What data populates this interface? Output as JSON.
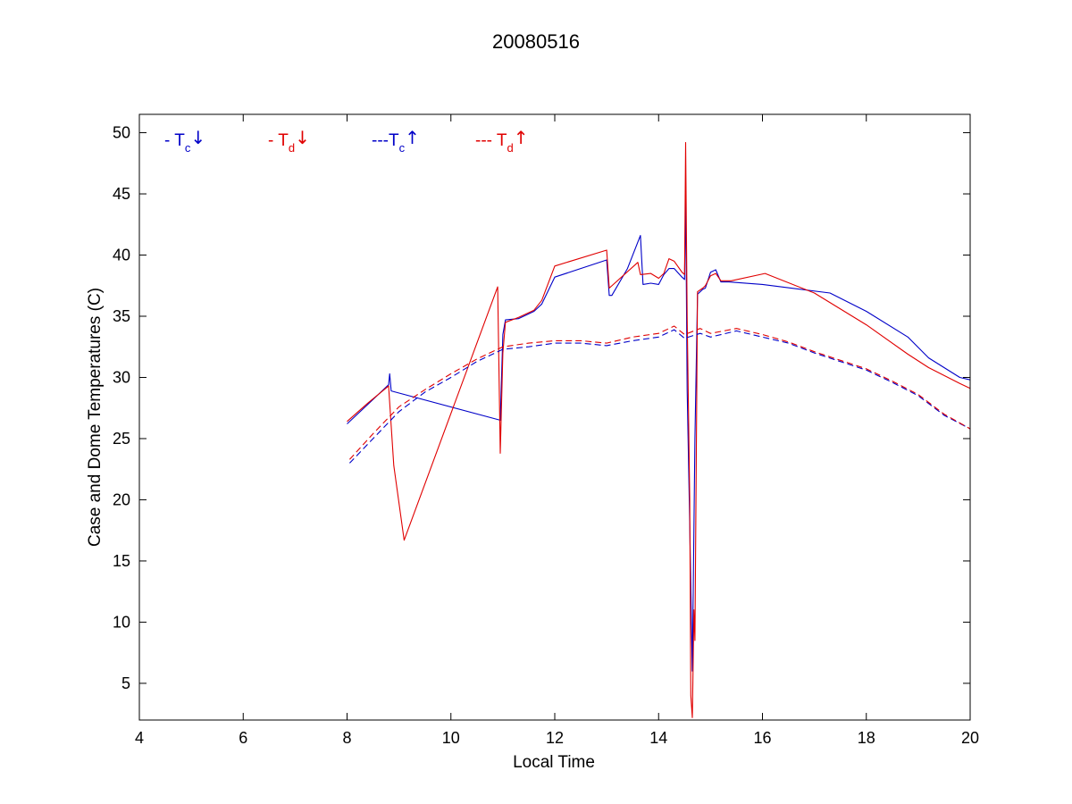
{
  "chart_data": {
    "type": "line",
    "title": "20080516",
    "xlabel": "Local Time",
    "ylabel": "Case and Dome Temperatures (C)",
    "xlim": [
      4,
      20
    ],
    "ylim": [
      2,
      51.5
    ],
    "xticks": [
      4,
      6,
      8,
      10,
      12,
      14,
      16,
      18,
      20
    ],
    "yticks": [
      5,
      10,
      15,
      20,
      25,
      30,
      35,
      40,
      45,
      50
    ],
    "grid": false,
    "legend_position": "top-left",
    "colors": {
      "blue": "#0000c8",
      "red": "#e00000"
    },
    "series": [
      {
        "legend": {
          "dash": "-",
          "main": "T",
          "sub": "c",
          "arrow": "↓"
        },
        "color": "blue",
        "style": "solid",
        "points": [
          [
            8.0,
            26.2
          ],
          [
            8.4,
            27.8
          ],
          [
            8.8,
            29.4
          ],
          [
            8.82,
            30.3
          ],
          [
            8.85,
            28.9
          ],
          [
            10.95,
            26.5
          ],
          [
            11.0,
            33.5
          ],
          [
            11.05,
            34.7
          ],
          [
            11.3,
            34.8
          ],
          [
            11.6,
            35.4
          ],
          [
            11.75,
            36.0
          ],
          [
            12.0,
            38.2
          ],
          [
            13.0,
            39.6
          ],
          [
            13.05,
            36.7
          ],
          [
            13.1,
            36.7
          ],
          [
            13.4,
            38.9
          ],
          [
            13.65,
            41.6
          ],
          [
            13.7,
            37.6
          ],
          [
            13.85,
            37.7
          ],
          [
            14.0,
            37.6
          ],
          [
            14.1,
            38.4
          ],
          [
            14.2,
            38.9
          ],
          [
            14.3,
            38.9
          ],
          [
            14.45,
            38.2
          ],
          [
            14.5,
            38.0
          ],
          [
            14.52,
            45.2
          ],
          [
            14.55,
            29.0
          ],
          [
            14.6,
            18.0
          ],
          [
            14.65,
            6.0
          ],
          [
            14.7,
            25.0
          ],
          [
            14.75,
            36.8
          ],
          [
            14.85,
            37.2
          ],
          [
            14.9,
            37.3
          ],
          [
            15.0,
            38.6
          ],
          [
            15.1,
            38.8
          ],
          [
            15.2,
            37.8
          ],
          [
            15.35,
            37.8
          ],
          [
            16.0,
            37.6
          ],
          [
            17.3,
            36.9
          ],
          [
            18.0,
            35.4
          ],
          [
            18.8,
            33.3
          ],
          [
            19.2,
            31.6
          ],
          [
            19.8,
            30.0
          ],
          [
            20.0,
            29.8
          ]
        ]
      },
      {
        "legend": {
          "dash": "-",
          "main": "T",
          "sub": "d",
          "arrow": "↓"
        },
        "color": "red",
        "style": "solid",
        "points": [
          [
            8.0,
            26.4
          ],
          [
            8.4,
            27.9
          ],
          [
            8.8,
            29.3
          ],
          [
            8.9,
            22.8
          ],
          [
            9.1,
            16.7
          ],
          [
            10.9,
            37.4
          ],
          [
            10.95,
            23.8
          ],
          [
            11.0,
            32.0
          ],
          [
            11.05,
            34.5
          ],
          [
            11.3,
            34.9
          ],
          [
            11.6,
            35.5
          ],
          [
            11.75,
            36.3
          ],
          [
            12.0,
            39.1
          ],
          [
            13.0,
            40.4
          ],
          [
            13.05,
            37.3
          ],
          [
            13.6,
            39.4
          ],
          [
            13.65,
            38.4
          ],
          [
            13.85,
            38.5
          ],
          [
            14.0,
            38.1
          ],
          [
            14.1,
            38.5
          ],
          [
            14.2,
            39.7
          ],
          [
            14.3,
            39.5
          ],
          [
            14.45,
            38.6
          ],
          [
            14.5,
            38.4
          ],
          [
            14.52,
            49.2
          ],
          [
            14.55,
            35.0
          ],
          [
            14.6,
            20.0
          ],
          [
            14.62,
            4.0
          ],
          [
            14.65,
            2.2
          ],
          [
            14.68,
            11.0
          ],
          [
            14.7,
            8.5
          ],
          [
            14.75,
            37.0
          ],
          [
            14.85,
            37.3
          ],
          [
            14.9,
            37.5
          ],
          [
            15.0,
            38.3
          ],
          [
            15.1,
            38.5
          ],
          [
            15.2,
            37.9
          ],
          [
            15.4,
            37.9
          ],
          [
            16.05,
            38.5
          ],
          [
            17.0,
            36.9
          ],
          [
            18.0,
            34.3
          ],
          [
            18.8,
            31.9
          ],
          [
            19.2,
            30.8
          ],
          [
            19.8,
            29.5
          ],
          [
            20.0,
            29.1
          ]
        ]
      },
      {
        "legend": {
          "dash": "---",
          "main": "T",
          "sub": "c",
          "arrow": "↑"
        },
        "color": "blue",
        "style": "dashed",
        "points": [
          [
            8.05,
            23.0
          ],
          [
            8.5,
            25.0
          ],
          [
            9.0,
            27.2
          ],
          [
            9.5,
            28.8
          ],
          [
            10.0,
            30.0
          ],
          [
            10.5,
            31.3
          ],
          [
            11.0,
            32.3
          ],
          [
            11.5,
            32.5
          ],
          [
            12.0,
            32.8
          ],
          [
            12.5,
            32.8
          ],
          [
            13.0,
            32.6
          ],
          [
            13.5,
            33.0
          ],
          [
            14.0,
            33.3
          ],
          [
            14.3,
            33.9
          ],
          [
            14.5,
            33.2
          ],
          [
            14.8,
            33.6
          ],
          [
            15.0,
            33.3
          ],
          [
            15.5,
            33.8
          ],
          [
            16.0,
            33.3
          ],
          [
            16.5,
            32.8
          ],
          [
            17.0,
            32.0
          ],
          [
            17.5,
            31.3
          ],
          [
            18.0,
            30.6
          ],
          [
            18.5,
            29.6
          ],
          [
            19.0,
            28.5
          ],
          [
            19.5,
            26.9
          ],
          [
            20.0,
            25.8
          ]
        ]
      },
      {
        "legend": {
          "dash": "---",
          "main": "T",
          "sub": "d",
          "arrow": "↑"
        },
        "color": "red",
        "style": "dashed",
        "points": [
          [
            8.05,
            23.3
          ],
          [
            8.5,
            25.4
          ],
          [
            9.0,
            27.6
          ],
          [
            9.5,
            29.0
          ],
          [
            10.0,
            30.3
          ],
          [
            10.5,
            31.5
          ],
          [
            11.0,
            32.5
          ],
          [
            11.5,
            32.8
          ],
          [
            12.0,
            33.0
          ],
          [
            12.5,
            33.0
          ],
          [
            13.0,
            32.8
          ],
          [
            13.5,
            33.3
          ],
          [
            14.0,
            33.6
          ],
          [
            14.3,
            34.2
          ],
          [
            14.5,
            33.5
          ],
          [
            14.8,
            34.0
          ],
          [
            15.0,
            33.6
          ],
          [
            15.5,
            34.0
          ],
          [
            16.0,
            33.5
          ],
          [
            16.5,
            32.9
          ],
          [
            17.0,
            32.1
          ],
          [
            17.5,
            31.4
          ],
          [
            18.0,
            30.7
          ],
          [
            18.5,
            29.7
          ],
          [
            19.0,
            28.6
          ],
          [
            19.5,
            27.0
          ],
          [
            20.0,
            25.8
          ]
        ]
      }
    ]
  }
}
